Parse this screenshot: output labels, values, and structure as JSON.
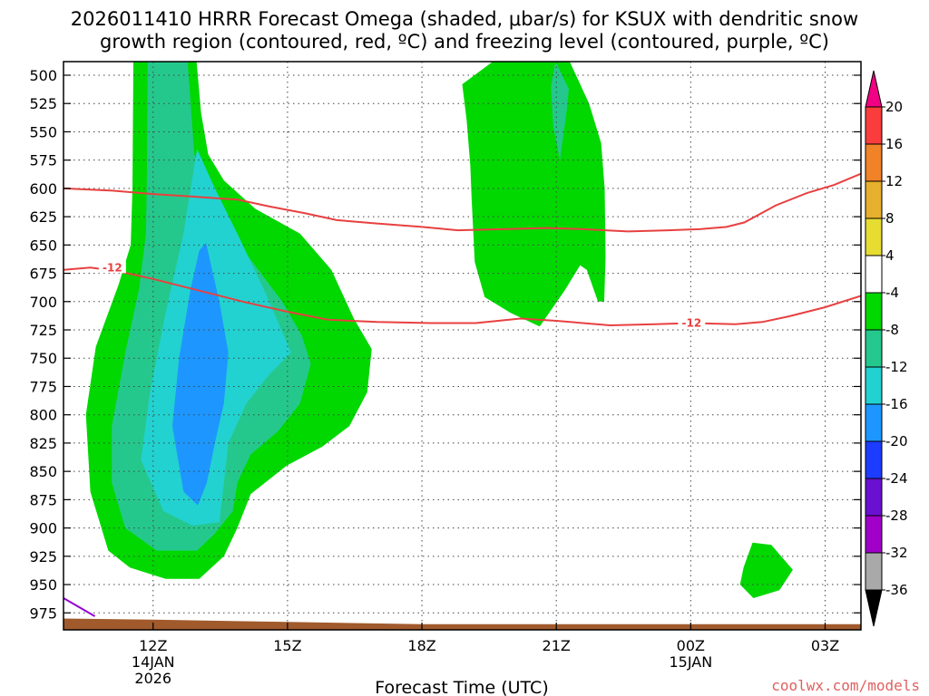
{
  "chart_data": {
    "type": "heatmap",
    "title_line1": "2026011410 HRRR Forecast Omega (shaded, μbar/s) for KSUX with dendritic snow",
    "title_line2": "growth region (contoured, red, ºC) and freezing level (contoured, purple, ºC)",
    "xlabel": "Forecast Time (UTC)",
    "credit": "coolwx.com/models",
    "credit_color": "#e06060",
    "x_ticks": [
      {
        "hour": 12,
        "label": "12Z",
        "sub1": "14JAN",
        "sub2": "2026"
      },
      {
        "hour": 15,
        "label": "15Z",
        "sub1": "",
        "sub2": ""
      },
      {
        "hour": 18,
        "label": "18Z",
        "sub1": "",
        "sub2": ""
      },
      {
        "hour": 21,
        "label": "21Z",
        "sub1": "",
        "sub2": ""
      },
      {
        "hour": 24,
        "label": "00Z",
        "sub1": "15JAN",
        "sub2": ""
      },
      {
        "hour": 27,
        "label": "03Z",
        "sub1": "",
        "sub2": ""
      }
    ],
    "xlim": [
      10,
      27.8
    ],
    "ylim": [
      488,
      990
    ],
    "y_ticks": [
      "500",
      "525",
      "550",
      "575",
      "600",
      "625",
      "650",
      "675",
      "700",
      "725",
      "750",
      "775",
      "800",
      "825",
      "850",
      "875",
      "900",
      "925",
      "950",
      "975"
    ],
    "colorbar": {
      "levels": [
        {
          "value": -36,
          "label": "-36",
          "color": "#000000"
        },
        {
          "value": -32,
          "label": "-32",
          "color": "#a9a9a9"
        },
        {
          "value": -28,
          "label": "-28",
          "color": "#a000c8"
        },
        {
          "value": -24,
          "label": "-24",
          "color": "#6a10d0"
        },
        {
          "value": -20,
          "label": "-20",
          "color": "#1c3cff"
        },
        {
          "value": -16,
          "label": "-16",
          "color": "#1e96ff"
        },
        {
          "value": -12,
          "label": "-12",
          "color": "#22d2d0"
        },
        {
          "value": -8,
          "label": "-8",
          "color": "#25c88c"
        },
        {
          "value": -4,
          "label": "-4",
          "color": "#00d800"
        },
        {
          "value": 4,
          "label": "4",
          "color": "#ffffff"
        },
        {
          "value": 8,
          "label": "8",
          "color": "#e6dc32"
        },
        {
          "value": 12,
          "label": "12",
          "color": "#e6af2d"
        },
        {
          "value": 16,
          "label": "16",
          "color": "#f08228"
        },
        {
          "value": 20,
          "label": "20",
          "color": "#fa3c3c"
        }
      ],
      "top_color": "#f00082"
    },
    "shaded_regions": [
      {
        "level": -4,
        "color": "#00d800",
        "points": [
          [
            11.56,
            488
          ],
          [
            12.97,
            488
          ],
          [
            13.07,
            533
          ],
          [
            13.23,
            570
          ],
          [
            13.58,
            593
          ],
          [
            14.28,
            618
          ],
          [
            15.28,
            640
          ],
          [
            15.98,
            672
          ],
          [
            16.48,
            715
          ],
          [
            16.88,
            742
          ],
          [
            16.78,
            780
          ],
          [
            16.38,
            810
          ],
          [
            15.78,
            828
          ],
          [
            14.98,
            845
          ],
          [
            14.18,
            870
          ],
          [
            13.88,
            900
          ],
          [
            13.58,
            925
          ],
          [
            13.03,
            945
          ],
          [
            12.28,
            945
          ],
          [
            11.48,
            935
          ],
          [
            11.0,
            920
          ],
          [
            10.6,
            868
          ],
          [
            10.5,
            800
          ],
          [
            10.72,
            740
          ],
          [
            11.23,
            685
          ],
          [
            11.5,
            650
          ],
          [
            11.54,
            600
          ]
        ]
      },
      {
        "level": -4,
        "color": "#00d800",
        "points": [
          [
            19.58,
            488
          ],
          [
            21.3,
            488
          ],
          [
            21.73,
            525
          ],
          [
            22.0,
            560
          ],
          [
            22.08,
            600
          ],
          [
            22.1,
            660
          ],
          [
            22.07,
            700
          ],
          [
            21.93,
            700
          ],
          [
            21.68,
            672
          ],
          [
            21.53,
            668
          ],
          [
            21.19,
            690
          ],
          [
            20.63,
            722
          ],
          [
            19.98,
            710
          ],
          [
            19.4,
            696
          ],
          [
            19.18,
            665
          ],
          [
            19.11,
            610
          ],
          [
            19.08,
            580
          ],
          [
            19.0,
            540
          ],
          [
            18.9,
            508
          ]
        ]
      },
      {
        "level": -4,
        "color": "#00d800",
        "points": [
          [
            25.18,
            935
          ],
          [
            25.38,
            913
          ],
          [
            25.8,
            915
          ],
          [
            26.28,
            937
          ],
          [
            25.98,
            955
          ],
          [
            25.4,
            962
          ],
          [
            25.1,
            950
          ]
        ]
      },
      {
        "level": -8,
        "color": "#25c88c",
        "points": [
          [
            11.88,
            488
          ],
          [
            12.77,
            488
          ],
          [
            12.92,
            570
          ],
          [
            13.42,
            628
          ],
          [
            14.12,
            660
          ],
          [
            14.88,
            700
          ],
          [
            15.32,
            730
          ],
          [
            15.52,
            755
          ],
          [
            15.28,
            790
          ],
          [
            14.78,
            815
          ],
          [
            14.18,
            835
          ],
          [
            13.88,
            860
          ],
          [
            13.78,
            885
          ],
          [
            13.38,
            905
          ],
          [
            12.98,
            920
          ],
          [
            12.08,
            920
          ],
          [
            11.38,
            900
          ],
          [
            11.08,
            860
          ],
          [
            11.08,
            810
          ],
          [
            11.38,
            745
          ],
          [
            11.68,
            690
          ],
          [
            11.84,
            640
          ],
          [
            11.86,
            590
          ]
        ]
      },
      {
        "level": -8,
        "color": "#25c88c",
        "points": [
          [
            20.98,
            488
          ],
          [
            21.28,
            512
          ],
          [
            21.22,
            535
          ],
          [
            21.08,
            575
          ],
          [
            20.93,
            545
          ],
          [
            20.88,
            510
          ]
        ]
      },
      {
        "level": -12,
        "color": "#22d2d0",
        "points": [
          [
            12.98,
            565
          ],
          [
            13.38,
            600
          ],
          [
            13.88,
            640
          ],
          [
            14.48,
            690
          ],
          [
            15.08,
            745
          ],
          [
            14.58,
            765
          ],
          [
            14.08,
            790
          ],
          [
            13.68,
            825
          ],
          [
            13.58,
            860
          ],
          [
            13.48,
            895
          ],
          [
            12.88,
            898
          ],
          [
            12.23,
            885
          ],
          [
            11.73,
            840
          ],
          [
            11.93,
            780
          ],
          [
            12.28,
            710
          ],
          [
            12.68,
            640
          ],
          [
            12.88,
            590
          ]
        ]
      },
      {
        "level": -16,
        "color": "#1e96ff",
        "points": [
          [
            13.18,
            648
          ],
          [
            13.48,
            700
          ],
          [
            13.68,
            745
          ],
          [
            13.58,
            790
          ],
          [
            13.38,
            825
          ],
          [
            13.2,
            860
          ],
          [
            13.0,
            880
          ],
          [
            12.68,
            868
          ],
          [
            12.43,
            810
          ],
          [
            12.58,
            750
          ],
          [
            12.83,
            690
          ],
          [
            13.03,
            655
          ]
        ]
      }
    ],
    "contours": [
      {
        "name": "dgz_-12",
        "color": "#e84040",
        "label": "-12",
        "label_positions": [
          [
            11.05,
            670
          ],
          [
            23.98,
            719
          ]
        ],
        "points": [
          [
            10,
            672
          ],
          [
            10.6,
            670
          ],
          [
            11.2,
            673
          ],
          [
            12.0,
            680
          ],
          [
            13.0,
            690
          ],
          [
            14.0,
            700
          ],
          [
            15.0,
            709
          ],
          [
            15.9,
            716
          ],
          [
            17.0,
            718
          ],
          [
            18.2,
            719
          ],
          [
            19.2,
            719
          ],
          [
            20.2,
            715
          ],
          [
            21.0,
            717
          ],
          [
            22.2,
            721
          ],
          [
            23.2,
            720
          ],
          [
            24.0,
            719
          ],
          [
            25.0,
            720
          ],
          [
            25.6,
            718
          ],
          [
            26.2,
            713
          ],
          [
            27.0,
            705
          ],
          [
            27.8,
            695
          ]
        ]
      },
      {
        "name": "dgz_-18",
        "color": "#e84040",
        "label": "",
        "label_positions": [],
        "points": [
          [
            10,
            600
          ],
          [
            11.1,
            602
          ],
          [
            12.0,
            605
          ],
          [
            12.8,
            607
          ],
          [
            13.9,
            610
          ],
          [
            14.6,
            616
          ],
          [
            15.4,
            622
          ],
          [
            16.1,
            628
          ],
          [
            17.0,
            631
          ],
          [
            18.0,
            634
          ],
          [
            18.8,
            637
          ],
          [
            19.8,
            636
          ],
          [
            20.8,
            635
          ],
          [
            21.6,
            636
          ],
          [
            22.6,
            638
          ],
          [
            23.5,
            637
          ],
          [
            24.2,
            636
          ],
          [
            24.8,
            634
          ],
          [
            25.2,
            630
          ],
          [
            25.9,
            615
          ],
          [
            26.6,
            604
          ],
          [
            27.2,
            597
          ],
          [
            27.8,
            587
          ]
        ]
      },
      {
        "name": "freezing_level",
        "color": "#9400d3",
        "label": "",
        "label_positions": [],
        "points": [
          [
            10,
            962
          ],
          [
            10.35,
            970
          ],
          [
            10.7,
            978
          ]
        ]
      }
    ],
    "terrain": {
      "color": "#a05a2c",
      "points": [
        [
          10,
          980
        ],
        [
          12.0,
          981
        ],
        [
          15.0,
          983
        ],
        [
          18.0,
          985
        ],
        [
          21.0,
          985
        ],
        [
          24.0,
          985
        ],
        [
          27.8,
          985
        ],
        [
          27.8,
          990
        ],
        [
          10,
          990
        ]
      ]
    }
  }
}
